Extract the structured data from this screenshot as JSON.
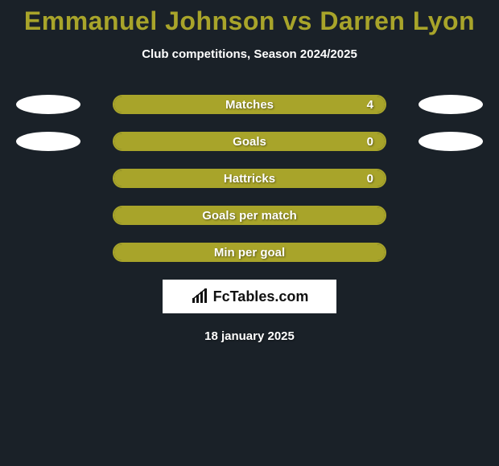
{
  "header": {
    "title": "Emmanuel Johnson vs Darren Lyon",
    "title_color": "#a8a42a",
    "subtitle": "Club competitions, Season 2024/2025"
  },
  "styling": {
    "page_bg": "#1a2128",
    "bar_border_color": "#a8a42a",
    "bar_fill_color": "#a8a42a",
    "ellipse_color": "#ffffff",
    "text_color": "#ffffff"
  },
  "rows": [
    {
      "label": "Matches",
      "value": "4",
      "fill_pct": 100,
      "show_value": true,
      "show_ellipses": true
    },
    {
      "label": "Goals",
      "value": "0",
      "fill_pct": 100,
      "show_value": true,
      "show_ellipses": true
    },
    {
      "label": "Hattricks",
      "value": "0",
      "fill_pct": 100,
      "show_value": true,
      "show_ellipses": false
    },
    {
      "label": "Goals per match",
      "value": "",
      "fill_pct": 100,
      "show_value": false,
      "show_ellipses": false
    },
    {
      "label": "Min per goal",
      "value": "",
      "fill_pct": 100,
      "show_value": false,
      "show_ellipses": false
    }
  ],
  "brand": {
    "text": "FcTables.com"
  },
  "footer": {
    "date": "18 january 2025"
  }
}
